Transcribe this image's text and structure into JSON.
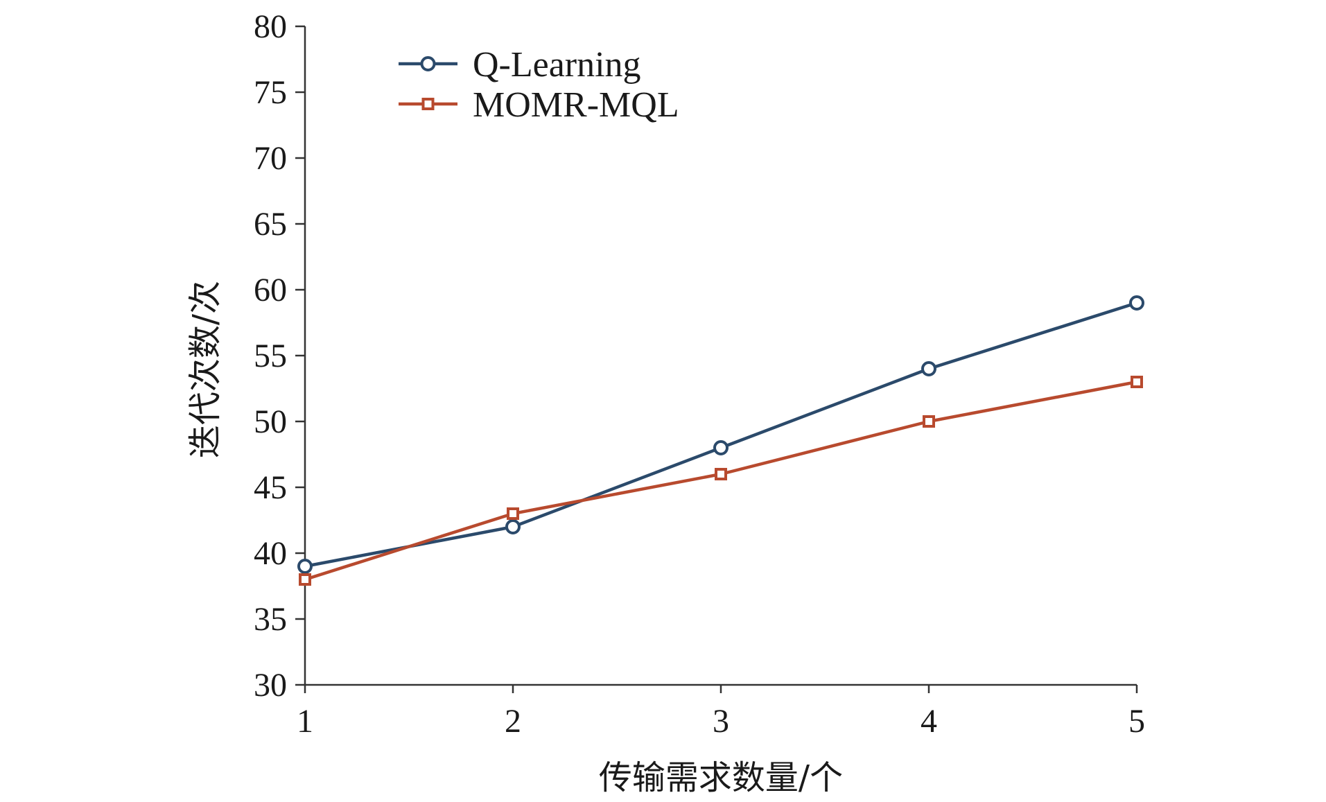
{
  "chart_data": {
    "type": "line",
    "x": [
      1,
      2,
      3,
      4,
      5
    ],
    "series": [
      {
        "name": "Q-Learning",
        "values": [
          39,
          42,
          48,
          54,
          59
        ],
        "color": "#2b4a6b",
        "marker": "circle"
      },
      {
        "name": "MOMR-MQL",
        "values": [
          38,
          43,
          46,
          50,
          53
        ],
        "color": "#b84a2e",
        "marker": "square"
      }
    ],
    "xlabel": "传输需求数量/个",
    "ylabel": "迭代次数/次",
    "xlim": [
      1,
      5
    ],
    "ylim": [
      30,
      80
    ],
    "xticks": [
      "1",
      "2",
      "3",
      "4",
      "5"
    ],
    "yticks": [
      "30",
      "35",
      "40",
      "45",
      "50",
      "55",
      "60",
      "65",
      "70",
      "75",
      "80"
    ],
    "grid": false,
    "legend_position": "top-left"
  }
}
